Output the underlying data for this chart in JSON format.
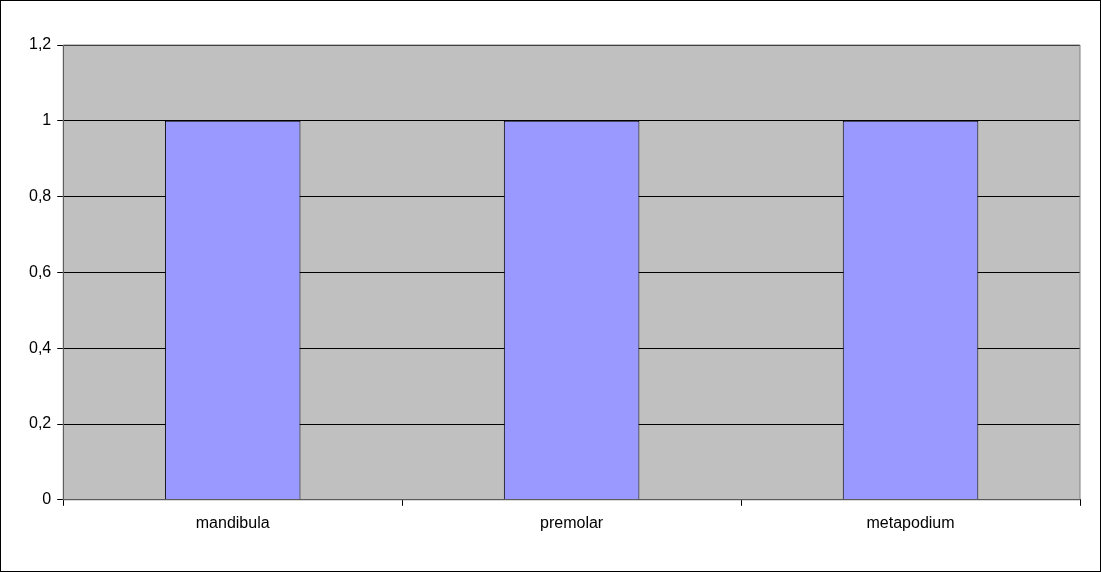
{
  "chart_data": {
    "type": "bar",
    "categories": [
      "mandibula",
      "premolar",
      "metapodium"
    ],
    "values": [
      1,
      1,
      1
    ],
    "color": "#9999ff",
    "ylim": [
      0,
      1.2
    ],
    "yticks": [
      0,
      {
        "value": 0.2,
        "label": "0,2"
      },
      {
        "value": 0.4,
        "label": "0,4"
      },
      {
        "value": 0.6,
        "label": "0,6"
      },
      {
        "value": 0.8,
        "label": "0,8"
      },
      1,
      {
        "value": 1.2,
        "label": "1,2"
      }
    ],
    "grid": "y",
    "legend": false
  }
}
